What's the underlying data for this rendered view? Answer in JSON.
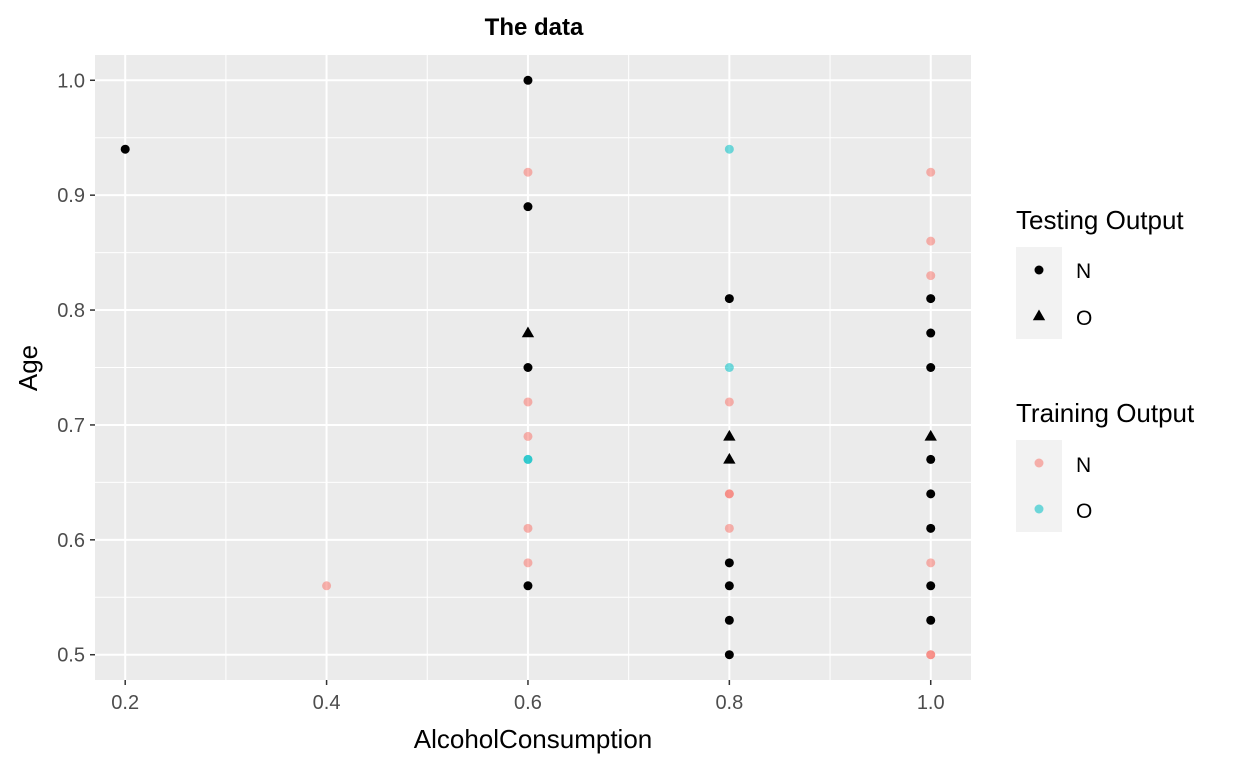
{
  "chart_data": {
    "type": "scatter",
    "title": "The data",
    "xlabel": "AlcoholConsumption",
    "ylabel": "Age",
    "xlim": [
      0.17,
      1.04
    ],
    "ylim": [
      0.478,
      1.022
    ],
    "x_ticks": [
      "0.2",
      "0.4",
      "0.6",
      "0.8",
      "1.0"
    ],
    "y_ticks": [
      "0.5",
      "0.6",
      "0.7",
      "0.8",
      "0.9",
      "1.0"
    ],
    "grid": true,
    "legend_position": "right",
    "colors": {
      "panel_bg": "#EBEBEB",
      "grid": "#FFFFFF",
      "training_N": "#F8766D",
      "training_O": "#00BFC4",
      "testing": "#000000"
    },
    "legends": [
      {
        "title": "Testing Output",
        "entries": [
          {
            "label": "N",
            "shape": "circle"
          },
          {
            "label": "O",
            "shape": "triangle"
          }
        ]
      },
      {
        "title": "Training Output",
        "entries": [
          {
            "label": "N",
            "color": "#F8766D"
          },
          {
            "label": "O",
            "color": "#00BFC4"
          }
        ]
      }
    ],
    "series": [
      {
        "name": "Training Output: N",
        "points": [
          [
            0.4,
            0.56
          ],
          [
            0.6,
            0.92
          ],
          [
            0.6,
            0.72
          ],
          [
            0.6,
            0.69
          ],
          [
            0.6,
            0.61
          ],
          [
            0.6,
            0.58
          ],
          [
            0.8,
            0.72
          ],
          [
            0.8,
            0.64
          ],
          [
            0.8,
            0.64
          ],
          [
            0.8,
            0.61
          ],
          [
            1.0,
            0.92
          ],
          [
            1.0,
            0.86
          ],
          [
            1.0,
            0.83
          ],
          [
            1.0,
            0.58
          ],
          [
            1.0,
            0.5
          ],
          [
            1.0,
            0.5
          ]
        ]
      },
      {
        "name": "Training Output: O",
        "points": [
          [
            0.6,
            0.67
          ],
          [
            0.6,
            0.67
          ],
          [
            0.8,
            0.94
          ],
          [
            0.8,
            0.75
          ]
        ]
      },
      {
        "name": "Testing Output: N",
        "points": [
          [
            0.2,
            0.94
          ],
          [
            0.6,
            1.0
          ],
          [
            0.6,
            0.89
          ],
          [
            0.6,
            0.75
          ],
          [
            0.6,
            0.56
          ],
          [
            0.8,
            0.81
          ],
          [
            0.8,
            0.58
          ],
          [
            0.8,
            0.56
          ],
          [
            0.8,
            0.53
          ],
          [
            0.8,
            0.5
          ],
          [
            1.0,
            0.81
          ],
          [
            1.0,
            0.78
          ],
          [
            1.0,
            0.75
          ],
          [
            1.0,
            0.67
          ],
          [
            1.0,
            0.64
          ],
          [
            1.0,
            0.61
          ],
          [
            1.0,
            0.56
          ],
          [
            1.0,
            0.53
          ]
        ]
      },
      {
        "name": "Testing Output: O",
        "points": [
          [
            0.6,
            0.78
          ],
          [
            0.8,
            0.69
          ],
          [
            0.8,
            0.67
          ],
          [
            1.0,
            0.69
          ]
        ]
      }
    ]
  }
}
